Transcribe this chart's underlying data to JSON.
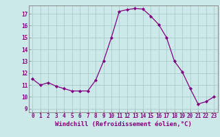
{
  "x": [
    0,
    1,
    2,
    3,
    4,
    5,
    6,
    7,
    8,
    9,
    10,
    11,
    12,
    13,
    14,
    15,
    16,
    17,
    18,
    19,
    20,
    21,
    22,
    23
  ],
  "y": [
    11.5,
    11.0,
    11.2,
    10.9,
    10.7,
    10.5,
    10.5,
    10.5,
    11.4,
    13.0,
    15.0,
    17.2,
    17.35,
    17.45,
    17.4,
    16.8,
    16.1,
    15.0,
    13.0,
    12.1,
    10.7,
    9.4,
    9.6,
    10.0
  ],
  "line_color": "#800080",
  "marker": "D",
  "marker_size": 2.2,
  "background_color": "#cce8e8",
  "grid_color": "#b0d0d0",
  "xlabel": "Windchill (Refroidissement éolien,°C)",
  "ylabel": "",
  "title": "",
  "ylim": [
    8.7,
    17.7
  ],
  "xlim": [
    -0.5,
    23.5
  ],
  "yticks": [
    9,
    10,
    11,
    12,
    13,
    14,
    15,
    16,
    17
  ],
  "xticks": [
    0,
    1,
    2,
    3,
    4,
    5,
    6,
    7,
    8,
    9,
    10,
    11,
    12,
    13,
    14,
    15,
    16,
    17,
    18,
    19,
    20,
    21,
    22,
    23
  ],
  "tick_color": "#800080",
  "tick_fontsize": 5.5,
  "xlabel_fontsize": 6.5,
  "spine_color": "#888888"
}
